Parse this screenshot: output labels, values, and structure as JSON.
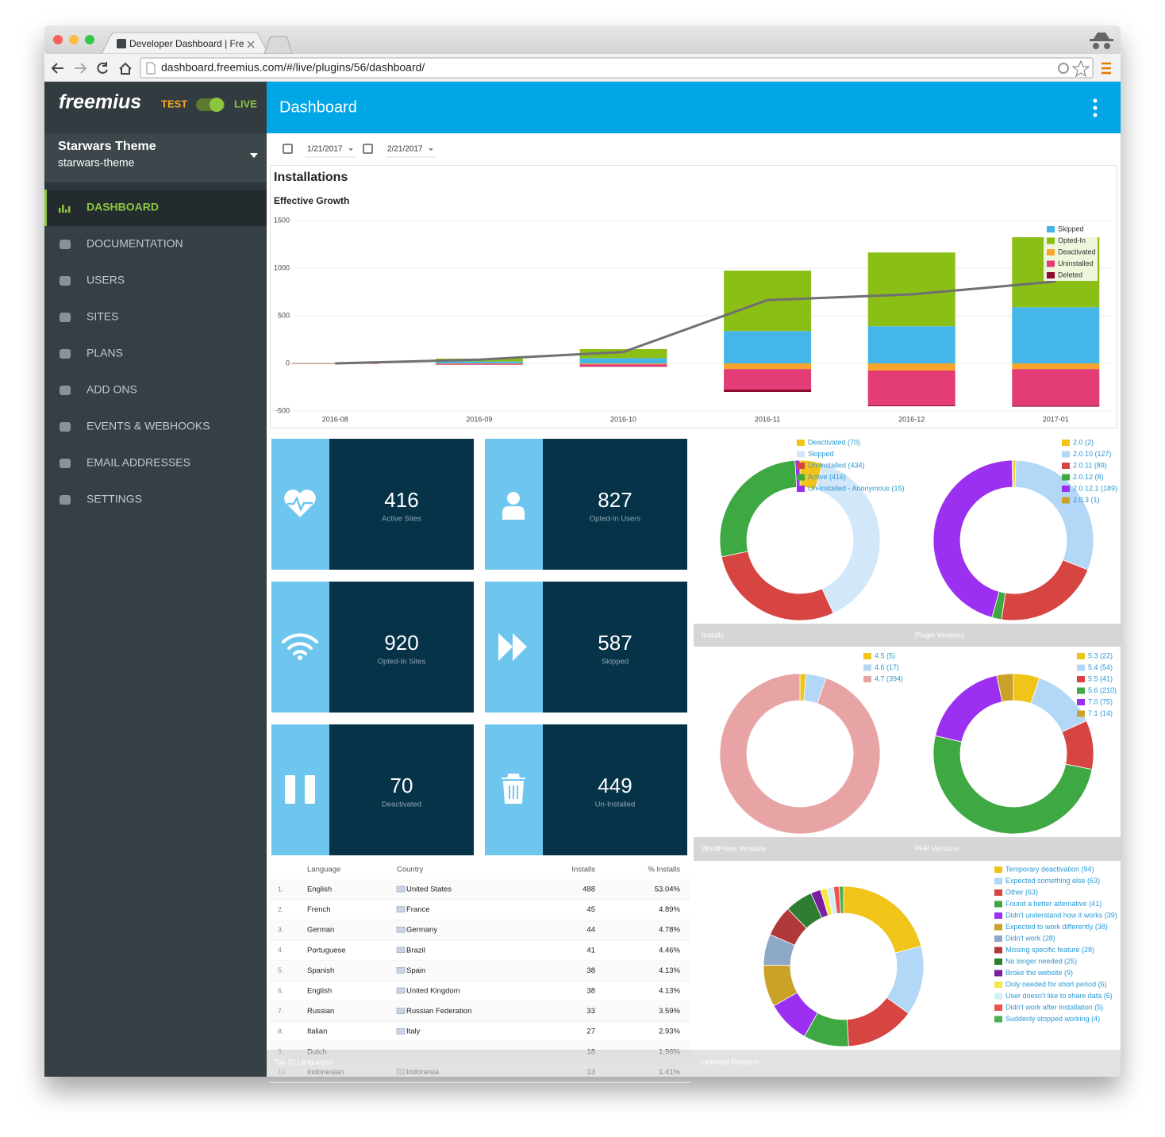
{
  "browser": {
    "tab_title": "Developer Dashboard | Fre",
    "url": "dashboard.freemius.com/#/live/plugins/56/dashboard/"
  },
  "sidebar": {
    "logo": "freemius",
    "mode_test": "TEST",
    "mode_live": "LIVE",
    "product_name": "Starwars Theme",
    "product_slug": "starwars-theme",
    "menu": [
      "DASHBOARD",
      "DOCUMENTATION",
      "USERS",
      "SITES",
      "PLANS",
      "ADD ONS",
      "EVENTS & WEBHOOKS",
      "EMAIL ADDRESSES",
      "SETTINGS"
    ]
  },
  "header": {
    "title": "Dashboard"
  },
  "date_range": {
    "from": "1/21/2017",
    "to": "2/21/2017"
  },
  "stats": [
    {
      "value": 416,
      "label": "Active Sites"
    },
    {
      "value": 827,
      "label": "Opted-In Users"
    },
    {
      "value": 920,
      "label": "Opted-In Sites"
    },
    {
      "value": 587,
      "label": "Skipped"
    },
    {
      "value": 70,
      "label": "Deactivated"
    },
    {
      "value": 449,
      "label": "Un-Installed"
    }
  ],
  "languages": {
    "title": "Top 10 Languages",
    "columns": [
      "Language",
      "Country",
      "Installs",
      "% Installs"
    ],
    "rows": [
      [
        "1.",
        "English",
        "United States",
        488,
        "53.04%"
      ],
      [
        "2.",
        "French",
        "France",
        45,
        "4.89%"
      ],
      [
        "3.",
        "German",
        "Germany",
        44,
        "4.78%"
      ],
      [
        "4.",
        "Portuguese",
        "Brazil",
        41,
        "4.46%"
      ],
      [
        "5.",
        "Spanish",
        "Spain",
        38,
        "4.13%"
      ],
      [
        "6.",
        "English",
        "United Kingdom",
        38,
        "4.13%"
      ],
      [
        "7.",
        "Russian",
        "Russian Federation",
        33,
        "3.59%"
      ],
      [
        "8.",
        "Italian",
        "Italy",
        27,
        "2.93%"
      ],
      [
        "9.",
        "Dutch",
        null,
        18,
        "1.96%"
      ],
      [
        "10.",
        "Indonesian",
        "Indonesia",
        13,
        "1.41%"
      ]
    ]
  },
  "chart_data": [
    {
      "type": "bar",
      "stacked": true,
      "title": "Installations",
      "subtitle": "Effective Growth",
      "categories": [
        "2016-08",
        "2016-09",
        "2016-10",
        "2016-11",
        "2016-12",
        "2017-01"
      ],
      "series": [
        {
          "name": "Skipped",
          "color": "#45b6e8",
          "values": [
            2,
            20,
            55,
            340,
            390,
            590
          ]
        },
        {
          "name": "Opted-In",
          "color": "#8cbf16",
          "values": [
            3,
            30,
            95,
            635,
            775,
            735
          ]
        },
        {
          "name": "Deactivated",
          "color": "#f7a52b",
          "values": [
            0,
            -5,
            -10,
            -60,
            -75,
            -60
          ]
        },
        {
          "name": "Uninstalled",
          "color": "#e33c77",
          "values": [
            -5,
            -10,
            -20,
            -215,
            -365,
            -385
          ]
        },
        {
          "name": "Deleted",
          "color": "#8b0a2e",
          "values": [
            0,
            0,
            -5,
            -25,
            -10,
            -10
          ]
        }
      ],
      "line": {
        "color": "#707070",
        "values": [
          0,
          40,
          120,
          665,
          725,
          860
        ]
      },
      "ylim": [
        -500,
        1500
      ],
      "yticks": [
        -500,
        0,
        500,
        1000,
        1500
      ],
      "grid": true,
      "legend": "top-right"
    },
    {
      "type": "donut",
      "title": "Installs",
      "labels": [
        "Deactivated (70)",
        "Skipped",
        "Un-Installed (434)",
        "Active (416)",
        "Un-Installed - Anonymous (15)"
      ],
      "values": [
        70,
        587,
        434,
        416,
        15
      ],
      "colors": [
        "#f0c419",
        "#d3e7fa",
        "#d64541",
        "#3ea843",
        "#9b30f0"
      ]
    },
    {
      "type": "donut",
      "title": "Plugin Versions",
      "labels": [
        "2.0 (2)",
        "2.0.10 (127)",
        "2.0.11 (89)",
        "2.0.12 (8)",
        "2.0.12.1 (189)",
        "2.0.3 (1)"
      ],
      "values": [
        2,
        127,
        89,
        8,
        189,
        1
      ],
      "colors": [
        "#f0c419",
        "#b3d7f7",
        "#d64541",
        "#3ea843",
        "#9b30f0",
        "#c9a227"
      ]
    },
    {
      "type": "donut",
      "title": "WordPress Versions",
      "labels": [
        "4.5 (5)",
        "4.6 (17)",
        "4.7 (394)"
      ],
      "values": [
        5,
        17,
        394
      ],
      "colors": [
        "#f0c419",
        "#b3d7f7",
        "#e8a4a4"
      ]
    },
    {
      "type": "donut",
      "title": "PHP Versions",
      "labels": [
        "5.3 (22)",
        "5.4 (54)",
        "5.5 (41)",
        "5.6 (210)",
        "7.0 (75)",
        "7.1 (14)"
      ],
      "values": [
        22,
        54,
        41,
        210,
        75,
        14
      ],
      "colors": [
        "#f0c419",
        "#b3d7f7",
        "#d64541",
        "#3ea843",
        "#9b30f0",
        "#c9a227"
      ]
    },
    {
      "type": "donut",
      "title": "Uninstall Reasons",
      "labels": [
        "Temporary deactivation (94)",
        "Expected something else (63)",
        "Other (63)",
        "Found a better alternative (41)",
        "Didn't understand how it works (39)",
        "Expected to work differently (38)",
        "Didn't work (28)",
        "Missing specific feature (28)",
        "No longer needed (25)",
        "Broke the website (9)",
        "Only needed for short period (6)",
        "User doesn't like to share data (6)",
        "Didn't work after installation (5)",
        "Suddenly stopped working (4)"
      ],
      "values": [
        94,
        63,
        63,
        41,
        39,
        38,
        28,
        28,
        25,
        9,
        6,
        6,
        5,
        4
      ],
      "colors": [
        "#f0c419",
        "#b3d7f7",
        "#d64541",
        "#3ea843",
        "#9b30f0",
        "#c9a227",
        "#8ea9c8",
        "#b03a3a",
        "#2e7d32",
        "#7b1fa2",
        "#f7e84a",
        "#d0f0f5",
        "#f05050",
        "#4caf50"
      ]
    }
  ]
}
